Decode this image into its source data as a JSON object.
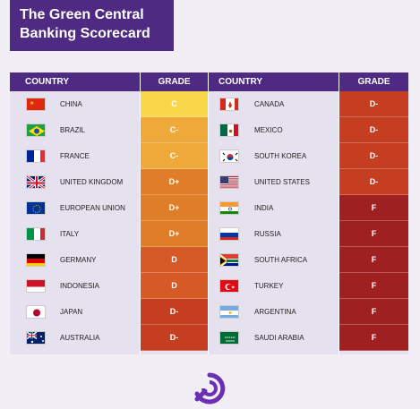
{
  "title": "The Green Central Banking Scorecard",
  "headers": {
    "country_left": "COUNTRY",
    "grade_left": "GRADE",
    "country_right": "COUNTRY",
    "grade_right": "GRADE"
  },
  "grade_colors": {
    "C": "#f8d84a",
    "C-": "#efa83a",
    "D+": "#df7d29",
    "D": "#d55a26",
    "D-": "#c53e22",
    "F": "#9e2020"
  },
  "left": [
    {
      "country": "CHINA",
      "grade": "C",
      "flag": "china-flag"
    },
    {
      "country": "BRAZIL",
      "grade": "C-",
      "flag": "brazil-flag"
    },
    {
      "country": "FRANCE",
      "grade": "C-",
      "flag": "france-flag"
    },
    {
      "country": "UNITED KINGDOM",
      "grade": "D+",
      "flag": "uk-flag"
    },
    {
      "country": "EUROPEAN UNION",
      "grade": "D+",
      "flag": "eu-flag"
    },
    {
      "country": "ITALY",
      "grade": "D+",
      "flag": "italy-flag"
    },
    {
      "country": "GERMANY",
      "grade": "D",
      "flag": "germany-flag"
    },
    {
      "country": "INDONESIA",
      "grade": "D",
      "flag": "indonesia-flag"
    },
    {
      "country": "JAPAN",
      "grade": "D-",
      "flag": "japan-flag"
    },
    {
      "country": "AUSTRALIA",
      "grade": "D-",
      "flag": "australia-flag"
    }
  ],
  "right": [
    {
      "country": "CANADA",
      "grade": "D-",
      "flag": "canada-flag"
    },
    {
      "country": "MEXICO",
      "grade": "D-",
      "flag": "mexico-flag"
    },
    {
      "country": "SOUTH KOREA",
      "grade": "D-",
      "flag": "south-korea-flag"
    },
    {
      "country": "UNITED STATES",
      "grade": "D-",
      "flag": "usa-flag"
    },
    {
      "country": "INDIA",
      "grade": "F",
      "flag": "india-flag"
    },
    {
      "country": "RUSSIA",
      "grade": "F",
      "flag": "russia-flag"
    },
    {
      "country": "SOUTH AFRICA",
      "grade": "F",
      "flag": "south-africa-flag"
    },
    {
      "country": "TURKEY",
      "grade": "F",
      "flag": "turkey-flag"
    },
    {
      "country": "ARGENTINA",
      "grade": "F",
      "flag": "argentina-flag"
    },
    {
      "country": "SAUDI ARABIA",
      "grade": "F",
      "flag": "saudi-arabia-flag"
    }
  ]
}
